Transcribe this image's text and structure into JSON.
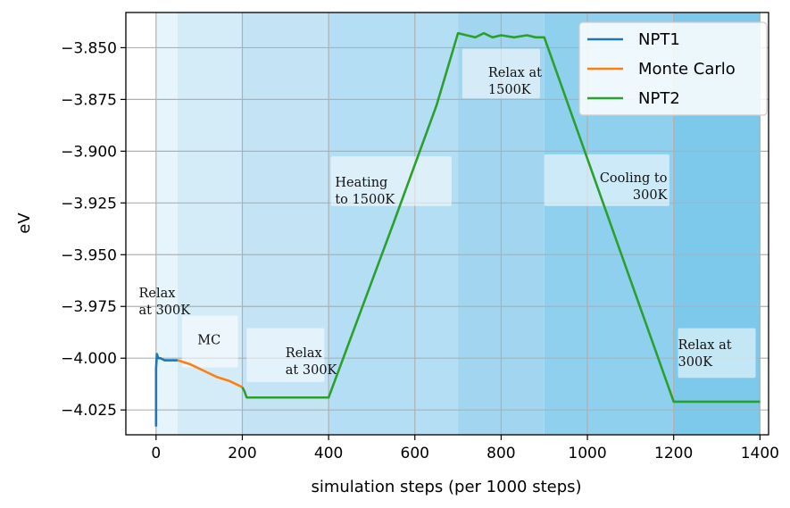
{
  "chart_data": {
    "type": "line",
    "title": "",
    "xlabel": "simulation steps (per 1000 steps)",
    "ylabel": "eV",
    "xlim": [
      -70,
      1420
    ],
    "ylim": [
      -4.037,
      -3.833
    ],
    "grid": true,
    "legend_position": "top-right",
    "x_ticks": [
      0,
      200,
      400,
      600,
      800,
      1000,
      1200,
      1400
    ],
    "x_tick_labels": [
      "0",
      "200",
      "400",
      "600",
      "800",
      "1000",
      "1200",
      "1400"
    ],
    "y_ticks": [
      -3.85,
      -3.875,
      -3.9,
      -3.925,
      -3.95,
      -3.975,
      -4.0,
      -4.025
    ],
    "y_tick_labels": [
      "−3.850",
      "−3.875",
      "−3.900",
      "−3.925",
      "−3.950",
      "−3.975",
      "−4.000",
      "−4.025"
    ],
    "bands": [
      {
        "x0": -70,
        "x1": 0,
        "color": "#ffffff"
      },
      {
        "x0": 0,
        "x1": 50,
        "color": "#e6f4fb"
      },
      {
        "x0": 50,
        "x1": 200,
        "color": "#d4ecf8"
      },
      {
        "x0": 200,
        "x1": 400,
        "color": "#c4e4f5"
      },
      {
        "x0": 400,
        "x1": 700,
        "color": "#b4def3"
      },
      {
        "x0": 700,
        "x1": 900,
        "color": "#a2d6f0"
      },
      {
        "x0": 900,
        "x1": 1200,
        "color": "#90d0ef"
      },
      {
        "x0": 1200,
        "x1": 1400,
        "color": "#7dc9ec"
      },
      {
        "x0": 1400,
        "x1": 1420,
        "color": "#ffffff"
      }
    ],
    "series": [
      {
        "name": "NPT1",
        "color": "#1f77b4",
        "points": [
          [
            0,
            -4.033
          ],
          [
            0,
            -4.005
          ],
          [
            2,
            -3.998
          ],
          [
            5,
            -4.0
          ],
          [
            10,
            -4.0
          ],
          [
            20,
            -4.001
          ],
          [
            30,
            -4.001
          ],
          [
            40,
            -4.001
          ],
          [
            50,
            -4.001
          ]
        ]
      },
      {
        "name": "Monte Carlo",
        "color": "#ff7f0e",
        "points": [
          [
            50,
            -4.001
          ],
          [
            80,
            -4.003
          ],
          [
            110,
            -4.006
          ],
          [
            140,
            -4.009
          ],
          [
            170,
            -4.011
          ],
          [
            200,
            -4.014
          ]
        ]
      },
      {
        "name": "NPT2",
        "color": "#2ca02c",
        "points": [
          [
            200,
            -4.014
          ],
          [
            205,
            -4.016
          ],
          [
            210,
            -4.019
          ],
          [
            250,
            -4.019
          ],
          [
            300,
            -4.019
          ],
          [
            350,
            -4.019
          ],
          [
            400,
            -4.019
          ],
          [
            550,
            -3.935
          ],
          [
            650,
            -3.878
          ],
          [
            700,
            -3.843
          ],
          [
            720,
            -3.844
          ],
          [
            740,
            -3.845
          ],
          [
            760,
            -3.843
          ],
          [
            780,
            -3.845
          ],
          [
            800,
            -3.844
          ],
          [
            830,
            -3.845
          ],
          [
            860,
            -3.844
          ],
          [
            880,
            -3.845
          ],
          [
            900,
            -3.845
          ],
          [
            1200,
            -4.021
          ],
          [
            1300,
            -4.021
          ],
          [
            1400,
            -4.021
          ]
        ]
      }
    ],
    "annotations": [
      {
        "lines": [
          "Relax",
          "at 300K"
        ],
        "x": -40,
        "y": -3.9705,
        "box": false
      },
      {
        "lines": [
          "MC"
        ],
        "x": 123,
        "y": -3.9932,
        "box": true,
        "box_x": [
          60,
          190
        ],
        "box_y": [
          -3.9795,
          -4.0045
        ]
      },
      {
        "lines": [
          "Relax",
          "at 300K"
        ],
        "x": 300,
        "y": -3.9995,
        "box": true,
        "box_x": [
          210,
          390
        ],
        "box_y": [
          -3.9855,
          -4.0115
        ]
      },
      {
        "lines": [
          "Heating",
          "to 1500K"
        ],
        "x": 415,
        "y": -3.917,
        "box": true,
        "box_x": [
          405,
          685
        ],
        "box_y": [
          -3.9025,
          -3.9265
        ]
      },
      {
        "lines": [
          "Relax at",
          "1500K"
        ],
        "x": 770,
        "y": -3.864,
        "box": true,
        "box_x": [
          710,
          890
        ],
        "box_y": [
          -3.8505,
          -3.8745
        ]
      },
      {
        "lines": [
          "Cooling to",
          "300K"
        ],
        "x": 1185,
        "y": -3.915,
        "box": true,
        "box_x": [
          900,
          1190
        ],
        "box_y": [
          -3.9015,
          -3.9265
        ]
      },
      {
        "lines": [
          "Relax at",
          "300K"
        ],
        "x": 1210,
        "y": -3.9955,
        "box": true,
        "box_x": [
          1210,
          1390
        ],
        "box_y": [
          -3.9855,
          -4.0095
        ]
      }
    ]
  }
}
